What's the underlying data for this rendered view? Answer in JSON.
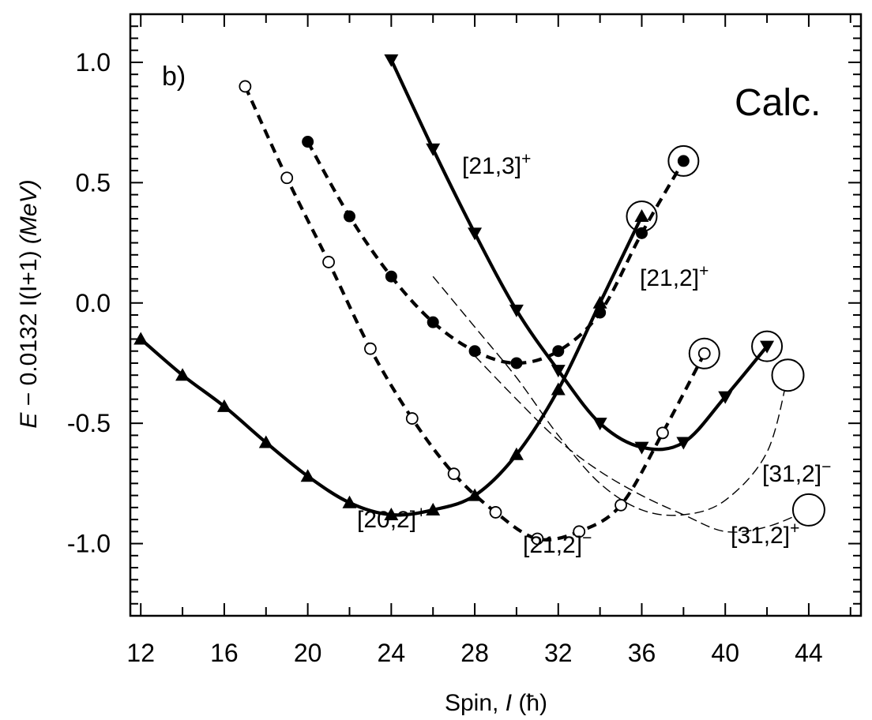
{
  "chart_data": {
    "type": "line",
    "panel_label": "b)",
    "annotation": "Calc.",
    "xlabel": {
      "prefix": "Spin, ",
      "var": "I",
      "unit": " (ħ)"
    },
    "ylabel": {
      "prefix": "E",
      "rest": " − 0.0132 I(I+1) ",
      "unit": "(MeV)"
    },
    "xlim": [
      11.5,
      46.5
    ],
    "ylim": [
      -1.3,
      1.2
    ],
    "xticks": [
      12,
      16,
      20,
      24,
      28,
      32,
      36,
      40,
      44
    ],
    "xtick_labels": [
      "12",
      "16",
      "20",
      "24",
      "28",
      "32",
      "36",
      "40",
      "44"
    ],
    "yticks": [
      1.0,
      0.5,
      0.0,
      -0.5,
      -1.0
    ],
    "ytick_labels": [
      "1.0",
      "0.5",
      "0.0",
      "-0.5",
      "-1.0"
    ],
    "series": [
      {
        "name": "[20,2]",
        "sup": "+",
        "style": "solid",
        "marker": "triangle-up",
        "x": [
          12,
          14,
          16,
          18,
          20,
          22,
          24,
          26,
          28,
          30,
          32,
          34,
          36
        ],
        "y": [
          -0.15,
          -0.3,
          -0.43,
          -0.58,
          -0.72,
          -0.83,
          -0.88,
          -0.86,
          -0.8,
          -0.63,
          -0.36,
          0.0,
          0.36
        ],
        "circled": [
          36
        ]
      },
      {
        "name": "[21,3]",
        "sup": "+",
        "style": "solid",
        "marker": "triangle-down",
        "x": [
          24,
          26,
          28,
          30,
          32,
          34,
          36,
          38,
          40,
          42
        ],
        "y": [
          1.01,
          0.64,
          0.29,
          -0.03,
          -0.28,
          -0.5,
          -0.6,
          -0.58,
          -0.39,
          -0.18
        ],
        "circled": [
          42
        ]
      },
      {
        "name": "[21,2]",
        "sup": "+",
        "style": "dashed-bold",
        "marker": "filled-circle",
        "x": [
          20,
          22,
          24,
          26,
          28,
          30,
          32,
          34,
          36,
          38
        ],
        "y": [
          0.67,
          0.36,
          0.11,
          -0.08,
          -0.2,
          -0.25,
          -0.2,
          -0.04,
          0.29,
          0.59
        ],
        "circled": [
          38
        ]
      },
      {
        "name": "[21,2]",
        "sup": "−",
        "style": "dashed-bold",
        "marker": "open-circle",
        "x": [
          17,
          19,
          21,
          23,
          25,
          27,
          29,
          31,
          33,
          35,
          37,
          39
        ],
        "y": [
          0.9,
          0.52,
          0.17,
          -0.19,
          -0.48,
          -0.71,
          -0.87,
          -0.98,
          -0.95,
          -0.84,
          -0.54,
          -0.21
        ],
        "circled": [
          39
        ]
      },
      {
        "name": "[31,2]",
        "sup": "+",
        "style": "dashed-thin",
        "marker": "none",
        "x": [
          28,
          30,
          32,
          34,
          36,
          38,
          40,
          42,
          44
        ],
        "y": [
          -0.22,
          -0.4,
          -0.57,
          -0.7,
          -0.8,
          -0.88,
          -0.95,
          -0.93,
          -0.86
        ],
        "circled": [
          44
        ]
      },
      {
        "name": "[31,2]",
        "sup": "−",
        "style": "dashed-thin",
        "marker": "none",
        "x": [
          26,
          28,
          30,
          32,
          34,
          36,
          38,
          40,
          42,
          43
        ],
        "y": [
          0.11,
          -0.1,
          -0.31,
          -0.55,
          -0.75,
          -0.86,
          -0.88,
          -0.82,
          -0.62,
          -0.3
        ],
        "circled": [
          43
        ]
      }
    ]
  }
}
